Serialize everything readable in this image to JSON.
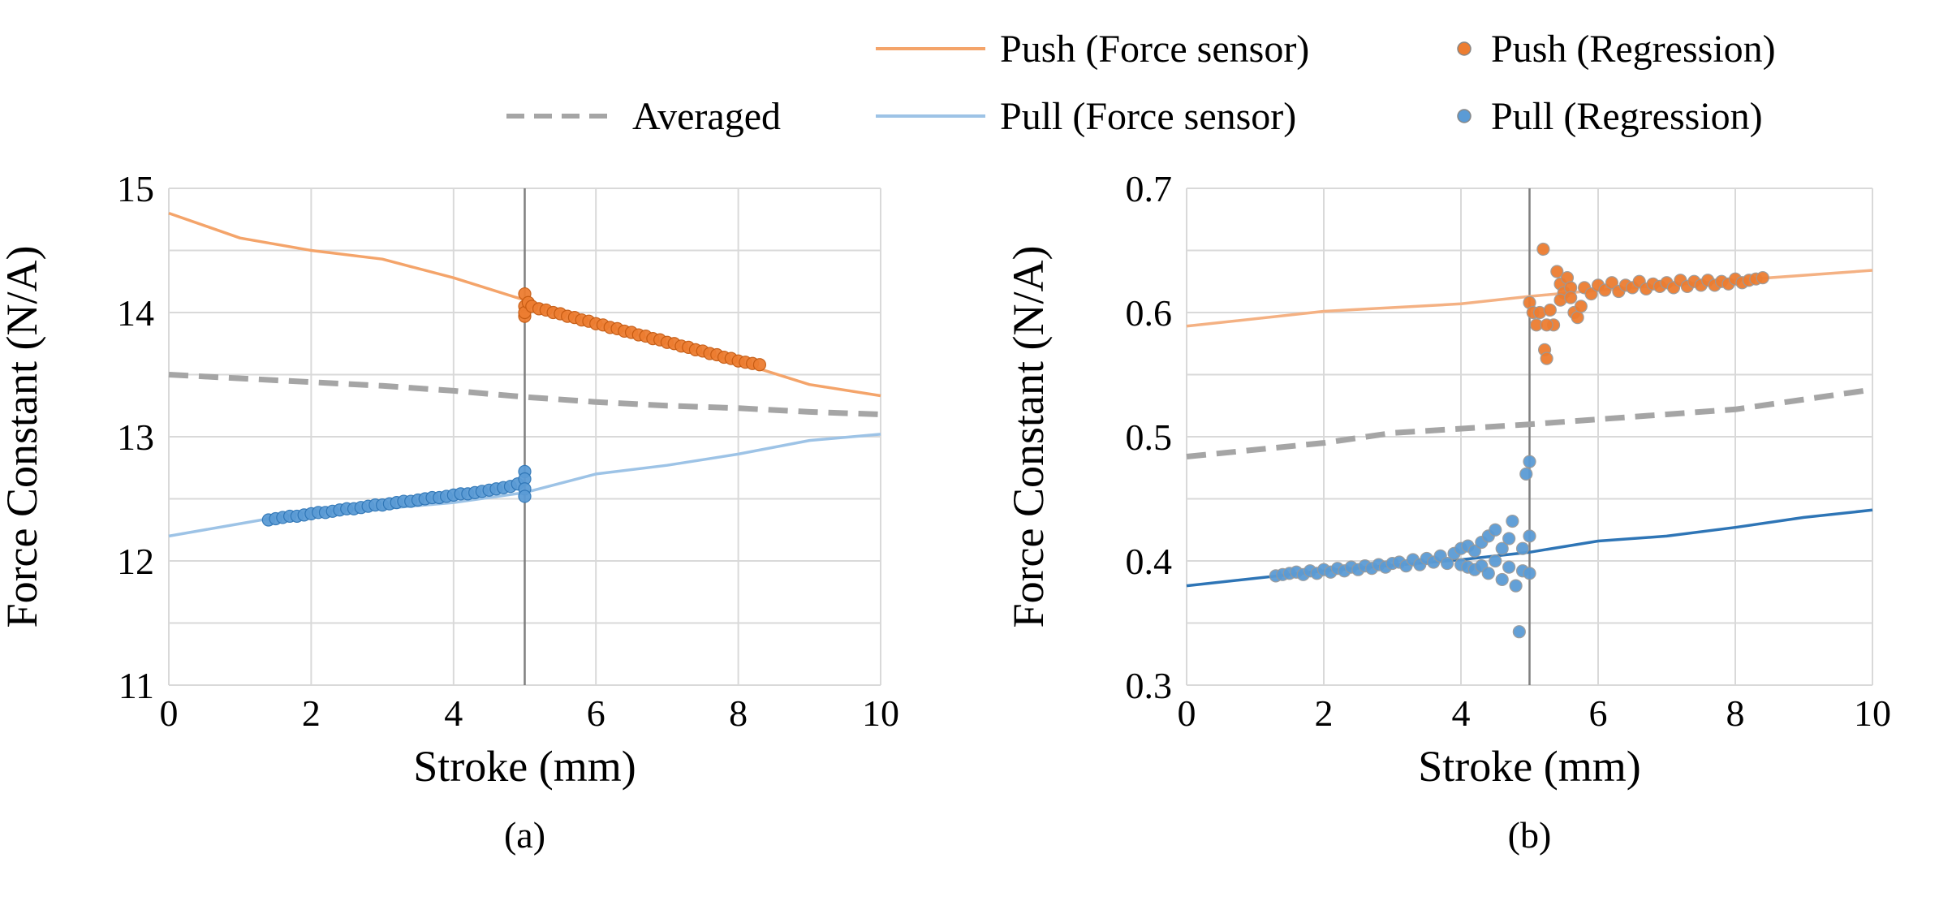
{
  "legend": [
    {
      "label": "Push (Force sensor)",
      "kind": "line",
      "color": "#f4a46a"
    },
    {
      "label": "Push (Regression)",
      "kind": "marker",
      "color": "#ed7d31"
    },
    {
      "label": "Averaged",
      "kind": "dashed",
      "color": "#a5a5a5"
    },
    {
      "label": "Pull (Force sensor)",
      "kind": "line",
      "color": "#9dc3e6"
    },
    {
      "label": "Pull (Regression)",
      "kind": "marker",
      "color": "#5b9bd5"
    }
  ],
  "chart_data": [
    {
      "type": "line",
      "panel_label": "(a)",
      "xlabel": "Stroke (mm)",
      "ylabel": "Force Constant (N/A)",
      "xlim": [
        0,
        10
      ],
      "ylim": [
        11,
        15
      ],
      "xticks": [
        "0",
        "2",
        "4",
        "6",
        "8",
        "10"
      ],
      "yticks": [
        "11",
        "12",
        "13",
        "14",
        "15"
      ],
      "grid": true,
      "vline_x": 5,
      "series": [
        {
          "name": "Push (Force sensor)",
          "kind": "line",
          "color": "#f4a46a",
          "x": [
            0,
            1,
            2,
            3,
            4,
            5,
            6,
            7,
            8,
            9,
            10
          ],
          "y": [
            14.8,
            14.6,
            14.5,
            14.43,
            14.28,
            14.1,
            13.92,
            13.75,
            13.6,
            13.42,
            13.33
          ]
        },
        {
          "name": "Pull (Force sensor)",
          "kind": "line",
          "color": "#9dc3e6",
          "x": [
            0,
            1,
            2,
            3,
            4,
            5,
            6,
            7,
            8,
            9,
            10
          ],
          "y": [
            12.2,
            12.3,
            12.4,
            12.42,
            12.47,
            12.55,
            12.7,
            12.77,
            12.86,
            12.97,
            13.02
          ]
        },
        {
          "name": "Averaged",
          "kind": "dashed",
          "color": "#a5a5a5",
          "x": [
            0,
            1,
            2,
            3,
            4,
            5,
            6,
            7,
            8,
            9,
            10
          ],
          "y": [
            13.5,
            13.47,
            13.44,
            13.41,
            13.37,
            13.32,
            13.28,
            13.25,
            13.23,
            13.2,
            13.18
          ]
        },
        {
          "name": "Push (Regression)",
          "kind": "marker",
          "color": "#ed7d31",
          "x": [
            5.0,
            5.0,
            5.0,
            5.0,
            5.05,
            5.1,
            5.2,
            5.3,
            5.4,
            5.5,
            5.6,
            5.7,
            5.8,
            5.9,
            6.0,
            6.1,
            6.2,
            6.3,
            6.4,
            6.5,
            6.6,
            6.7,
            6.8,
            6.9,
            7.0,
            7.1,
            7.2,
            7.3,
            7.4,
            7.5,
            7.6,
            7.7,
            7.8,
            7.9,
            8.0,
            8.1,
            8.2,
            8.3
          ],
          "y": [
            14.15,
            14.05,
            13.97,
            14.0,
            14.08,
            14.05,
            14.03,
            14.02,
            14.0,
            13.99,
            13.97,
            13.96,
            13.94,
            13.93,
            13.91,
            13.9,
            13.88,
            13.87,
            13.85,
            13.84,
            13.82,
            13.81,
            13.79,
            13.78,
            13.76,
            13.75,
            13.73,
            13.72,
            13.7,
            13.69,
            13.67,
            13.66,
            13.64,
            13.63,
            13.61,
            13.6,
            13.59,
            13.58
          ]
        },
        {
          "name": "Pull (Regression)",
          "kind": "marker",
          "color": "#5b9bd5",
          "x": [
            1.4,
            1.5,
            1.6,
            1.7,
            1.8,
            1.9,
            2.0,
            2.1,
            2.2,
            2.3,
            2.4,
            2.5,
            2.6,
            2.7,
            2.8,
            2.9,
            3.0,
            3.1,
            3.2,
            3.3,
            3.4,
            3.5,
            3.6,
            3.7,
            3.8,
            3.9,
            4.0,
            4.1,
            4.2,
            4.3,
            4.4,
            4.5,
            4.6,
            4.7,
            4.8,
            4.9,
            5.0,
            5.0,
            5.0,
            5.0
          ],
          "y": [
            12.33,
            12.34,
            12.35,
            12.36,
            12.36,
            12.37,
            12.38,
            12.39,
            12.39,
            12.4,
            12.41,
            12.42,
            12.42,
            12.43,
            12.44,
            12.45,
            12.45,
            12.46,
            12.47,
            12.48,
            12.48,
            12.49,
            12.5,
            12.51,
            12.51,
            12.52,
            12.53,
            12.54,
            12.54,
            12.55,
            12.56,
            12.57,
            12.58,
            12.59,
            12.6,
            12.62,
            12.72,
            12.66,
            12.58,
            12.52
          ]
        }
      ]
    },
    {
      "type": "line",
      "panel_label": "(b)",
      "xlabel": "Stroke (mm)",
      "ylabel": "Force Constant (N/A)",
      "xlim": [
        0,
        10
      ],
      "ylim": [
        0.3,
        0.7
      ],
      "xticks": [
        "0",
        "2",
        "4",
        "6",
        "8",
        "10"
      ],
      "yticks": [
        "0.3",
        "0.4",
        "0.5",
        "0.6",
        "0.7"
      ],
      "grid": true,
      "vline_x": 5,
      "series": [
        {
          "name": "Push (Force sensor)",
          "kind": "line",
          "color": "#f4b183",
          "x": [
            0,
            2,
            4,
            5,
            6,
            8,
            10
          ],
          "y": [
            0.589,
            0.601,
            0.607,
            0.613,
            0.618,
            0.626,
            0.634
          ]
        },
        {
          "name": "Pull (Force sensor)",
          "kind": "line",
          "color": "#2e75b6",
          "x": [
            0,
            2,
            4,
            5,
            6,
            7,
            8,
            9,
            10
          ],
          "y": [
            0.38,
            0.392,
            0.401,
            0.407,
            0.416,
            0.42,
            0.427,
            0.435,
            0.441
          ]
        },
        {
          "name": "Averaged",
          "kind": "dashed",
          "color": "#a5a5a5",
          "x": [
            0,
            2,
            3,
            5,
            8,
            10
          ],
          "y": [
            0.484,
            0.495,
            0.503,
            0.51,
            0.522,
            0.538
          ]
        },
        {
          "name": "Push (Regression)",
          "kind": "marker",
          "color": "#ed7d31",
          "x": [
            5.0,
            5.05,
            5.1,
            5.15,
            5.2,
            5.22,
            5.25,
            5.3,
            5.35,
            5.4,
            5.45,
            5.5,
            5.55,
            5.6,
            5.65,
            5.7,
            5.8,
            5.9,
            6.0,
            6.1,
            6.2,
            6.3,
            6.4,
            6.5,
            6.6,
            6.7,
            6.8,
            6.9,
            7.0,
            7.1,
            7.2,
            7.3,
            7.4,
            7.5,
            7.6,
            7.7,
            7.8,
            7.9,
            8.0,
            8.1,
            8.2,
            8.3,
            8.4,
            5.25,
            5.45,
            5.6,
            5.75
          ],
          "y": [
            0.608,
            0.6,
            0.59,
            0.6,
            0.651,
            0.57,
            0.563,
            0.602,
            0.59,
            0.633,
            0.623,
            0.616,
            0.628,
            0.62,
            0.6,
            0.596,
            0.62,
            0.615,
            0.622,
            0.618,
            0.624,
            0.617,
            0.622,
            0.62,
            0.625,
            0.619,
            0.623,
            0.621,
            0.624,
            0.62,
            0.626,
            0.621,
            0.625,
            0.622,
            0.626,
            0.622,
            0.625,
            0.623,
            0.627,
            0.624,
            0.626,
            0.627,
            0.628,
            0.59,
            0.61,
            0.612,
            0.605
          ]
        },
        {
          "name": "Pull (Regression)",
          "kind": "marker",
          "color": "#5b9bd5",
          "x": [
            1.3,
            1.4,
            1.5,
            1.6,
            1.7,
            1.8,
            1.9,
            2.0,
            2.1,
            2.2,
            2.3,
            2.4,
            2.5,
            2.6,
            2.7,
            2.8,
            2.9,
            3.0,
            3.1,
            3.2,
            3.3,
            3.4,
            3.5,
            3.6,
            3.7,
            3.8,
            3.9,
            4.0,
            4.0,
            4.1,
            4.1,
            4.2,
            4.2,
            4.3,
            4.3,
            4.4,
            4.4,
            4.5,
            4.5,
            4.6,
            4.6,
            4.7,
            4.7,
            4.75,
            4.8,
            4.85,
            4.9,
            4.9,
            4.95,
            5.0,
            5.0,
            5.0
          ],
          "y": [
            0.388,
            0.389,
            0.39,
            0.391,
            0.389,
            0.392,
            0.39,
            0.393,
            0.391,
            0.394,
            0.392,
            0.395,
            0.393,
            0.396,
            0.394,
            0.397,
            0.395,
            0.398,
            0.399,
            0.396,
            0.401,
            0.397,
            0.402,
            0.399,
            0.404,
            0.398,
            0.406,
            0.41,
            0.397,
            0.412,
            0.395,
            0.408,
            0.393,
            0.415,
            0.396,
            0.42,
            0.39,
            0.425,
            0.4,
            0.41,
            0.385,
            0.418,
            0.395,
            0.432,
            0.38,
            0.343,
            0.41,
            0.392,
            0.47,
            0.48,
            0.42,
            0.39
          ]
        }
      ]
    }
  ]
}
